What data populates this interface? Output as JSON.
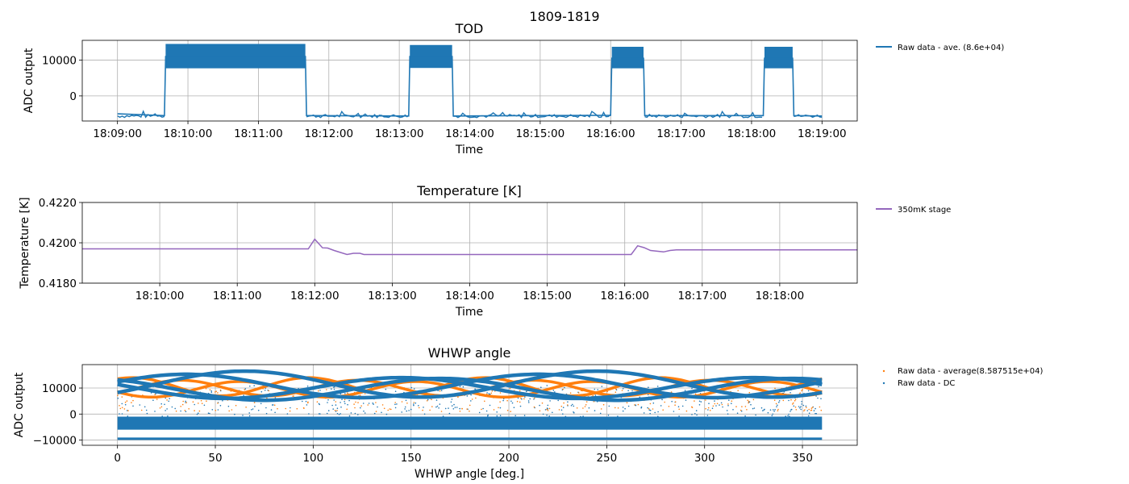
{
  "figure": {
    "suptitle": "1809-1819"
  },
  "colors": {
    "raw": "#1f77b4",
    "average": "#ff7f0e",
    "temperature": "#9467bd",
    "grid": "#b0b0b0"
  },
  "chart_data": [
    {
      "type": "line",
      "title": "TOD",
      "xlabel": "Time",
      "ylabel": "ADC output",
      "x_ticks": [
        "18:09:00",
        "18:10:00",
        "18:11:00",
        "18:12:00",
        "18:13:00",
        "18:14:00",
        "18:15:00",
        "18:16:00",
        "18:17:00",
        "18:18:00",
        "18:19:00"
      ],
      "y_ticks": [
        "0",
        "10000"
      ],
      "xlim": [
        "18:08:30",
        "18:19:30"
      ],
      "ylim": [
        -7000,
        15500
      ],
      "grid": true,
      "legend": "outside-right-top",
      "series": [
        {
          "name": "Raw data - ave. (8.6e+04)",
          "x": [
            "18:09:00",
            "18:09:40",
            "18:09:41",
            "18:11:40",
            "18:11:41",
            "18:13:08",
            "18:13:09",
            "18:13:45",
            "18:13:46",
            "18:16:00",
            "18:16:01",
            "18:16:28",
            "18:16:29",
            "18:18:10",
            "18:18:11",
            "18:18:35",
            "18:18:36",
            "18:19:00"
          ],
          "y": [
            -5000,
            -5500,
            11000,
            11000,
            -5500,
            -5600,
            11000,
            11000,
            -5600,
            -5400,
            10500,
            10500,
            -5500,
            -5500,
            10500,
            10500,
            -5500,
            -5600
          ],
          "band_low": [
            -6000,
            -6000,
            7700,
            7700,
            -6000,
            -6000,
            7800,
            7800,
            -6000,
            -6000,
            7700,
            7700,
            -6000,
            -6000,
            7700,
            7700,
            -6000,
            -6000
          ],
          "band_high": [
            -4500,
            -4500,
            14500,
            14500,
            -4500,
            -4500,
            14200,
            14200,
            -4500,
            -4500,
            13700,
            13700,
            -4500,
            -4500,
            13700,
            13700,
            -4500,
            -4500
          ]
        }
      ]
    },
    {
      "type": "line",
      "title": "Temperature [K]",
      "xlabel": "Time",
      "ylabel": "Temperature [K]",
      "x_ticks": [
        "18:10:00",
        "18:11:00",
        "18:12:00",
        "18:13:00",
        "18:14:00",
        "18:15:00",
        "18:16:00",
        "18:17:00",
        "18:18:00"
      ],
      "y_ticks": [
        "0.4180",
        "0.4200",
        "0.4220"
      ],
      "xlim": [
        "18:09:00",
        "18:19:00"
      ],
      "ylim": [
        0.418,
        0.422
      ],
      "grid": true,
      "legend": "outside-right-top",
      "series": [
        {
          "name": "350mK stage",
          "x": [
            "18:09:00",
            "18:11:55",
            "18:12:00",
            "18:12:06",
            "18:12:10",
            "18:12:15",
            "18:12:25",
            "18:12:30",
            "18:12:35",
            "18:12:38",
            "18:12:45",
            "18:13:00",
            "18:14:00",
            "18:15:00",
            "18:16:00",
            "18:16:05",
            "18:16:10",
            "18:16:15",
            "18:16:20",
            "18:16:30",
            "18:16:35",
            "18:16:40",
            "18:16:45",
            "18:17:00",
            "18:18:00",
            "18:19:00"
          ],
          "y": [
            0.4197,
            0.4197,
            0.42018,
            0.41975,
            0.41974,
            0.41962,
            0.41942,
            0.41948,
            0.41948,
            0.41942,
            0.41942,
            0.41942,
            0.41942,
            0.41942,
            0.41942,
            0.41942,
            0.41985,
            0.41976,
            0.41962,
            0.41955,
            0.41962,
            0.41965,
            0.41965,
            0.41965,
            0.41965,
            0.41965
          ]
        }
      ]
    },
    {
      "type": "scatter",
      "title": "WHWP angle",
      "xlabel": "WHWP angle [deg.]",
      "ylabel": "ADC output",
      "x_ticks": [
        "0",
        "50",
        "100",
        "150",
        "200",
        "250",
        "300",
        "350"
      ],
      "y_ticks": [
        "−10000",
        "0",
        "10000"
      ],
      "xlim": [
        -18,
        378
      ],
      "ylim": [
        -12000,
        19000
      ],
      "grid": true,
      "legend": "outside-right-top",
      "series": [
        {
          "name": "Raw data - average(8.587515e+04)",
          "marker_size": 1,
          "sinusoids": [
            {
              "offset": 10500,
              "amplitude": 3500,
              "period_deg": 90,
              "phase_deg": 75
            },
            {
              "offset": 9500,
              "amplitude": 3000,
              "period_deg": 90,
              "phase_deg": 40
            },
            {
              "offset": 10000,
              "amplitude": 3000,
              "period_deg": 90,
              "phase_deg": 10
            }
          ]
        },
        {
          "name": "Raw data - DC",
          "marker_size": 1,
          "sinusoids": [
            {
              "offset": 11500,
              "amplitude": 5000,
              "period_deg": 180,
              "phase_deg": 20
            },
            {
              "offset": 10800,
              "amplitude": 4500,
              "period_deg": 180,
              "phase_deg": -10
            },
            {
              "offset": 10000,
              "amplitude": 4000,
              "period_deg": 180,
              "phase_deg": 100
            },
            {
              "offset": 9500,
              "amplitude": 4200,
              "period_deg": 180,
              "phase_deg": 120
            }
          ],
          "band": [
            -6000,
            -1000
          ],
          "floor_level": -9500
        }
      ]
    }
  ]
}
